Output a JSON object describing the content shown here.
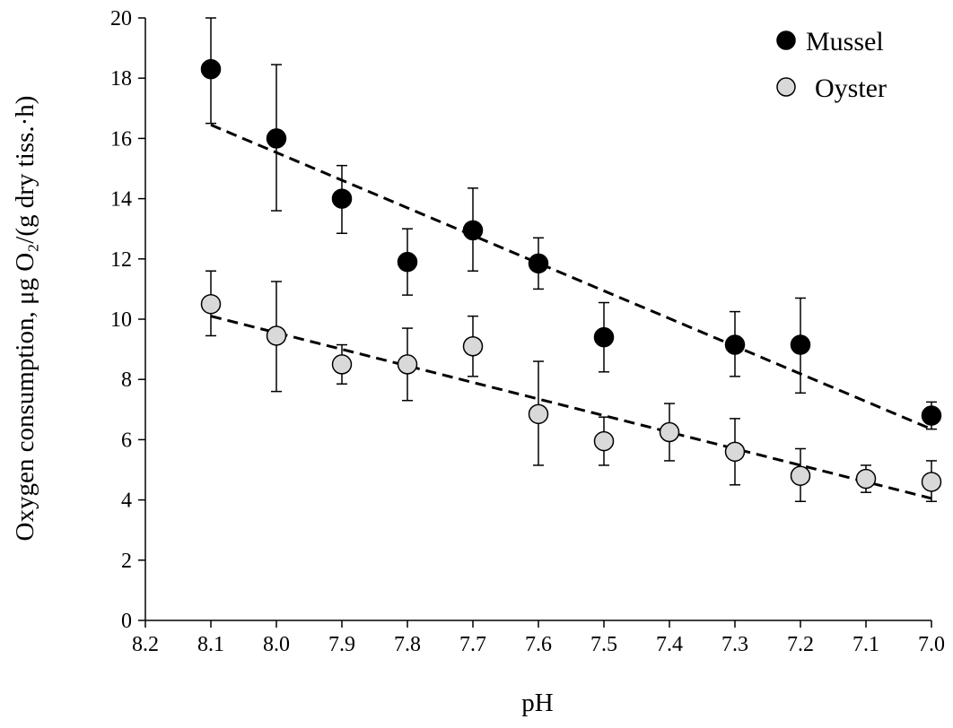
{
  "chart_data": {
    "type": "scatter",
    "xlabel": "pH",
    "ylabel": "Oxygen consumption, μg O₂/(g dry tiss.·h)",
    "xlim": [
      8.2,
      7.0
    ],
    "x_reversed": true,
    "ylim": [
      0,
      20
    ],
    "xticks": [
      "8.2",
      "8.1",
      "8.0",
      "7.9",
      "7.8",
      "7.7",
      "7.6",
      "7.5",
      "7.4",
      "7.3",
      "7.2",
      "7.1",
      "7.0"
    ],
    "yticks": [
      "0",
      "2",
      "4",
      "6",
      "8",
      "10",
      "12",
      "14",
      "16",
      "18",
      "20"
    ],
    "grid": false,
    "legend_position": "top-right",
    "series": [
      {
        "name": "Mussel",
        "marker": "filled-circle",
        "color": "#000000",
        "x": [
          8.1,
          8.0,
          7.9,
          7.8,
          7.7,
          7.6,
          7.5,
          7.3,
          7.2,
          7.0
        ],
        "y": [
          18.3,
          16.0,
          14.0,
          11.9,
          12.95,
          11.85,
          9.4,
          9.15,
          9.15,
          6.8
        ],
        "err_low": [
          1.8,
          2.4,
          1.15,
          1.1,
          1.35,
          0.85,
          1.15,
          1.05,
          1.6,
          0.45
        ],
        "err_high": [
          1.7,
          2.45,
          1.1,
          1.1,
          1.4,
          0.85,
          1.15,
          1.1,
          1.55,
          0.45
        ],
        "trendline": {
          "style": "dashed",
          "x": [
            8.1,
            7.0
          ],
          "y": [
            16.45,
            6.35
          ]
        }
      },
      {
        "name": "Oyster",
        "marker": "open-circle",
        "color": "#d9d9d9",
        "x": [
          8.1,
          8.0,
          7.9,
          7.8,
          7.7,
          7.6,
          7.5,
          7.4,
          7.3,
          7.2,
          7.1,
          7.0
        ],
        "y": [
          10.5,
          9.45,
          8.5,
          8.5,
          9.1,
          6.85,
          5.95,
          6.25,
          5.6,
          4.8,
          4.7,
          4.6
        ],
        "err_low": [
          1.05,
          1.85,
          0.65,
          1.2,
          1.0,
          1.7,
          0.8,
          0.95,
          1.1,
          0.85,
          0.45,
          0.65
        ],
        "err_high": [
          1.1,
          1.8,
          0.65,
          1.2,
          1.0,
          1.75,
          0.8,
          0.95,
          1.1,
          0.9,
          0.45,
          0.7
        ],
        "trendline": {
          "style": "dashed",
          "x": [
            8.1,
            7.0
          ],
          "y": [
            10.1,
            4.05
          ]
        }
      }
    ]
  }
}
